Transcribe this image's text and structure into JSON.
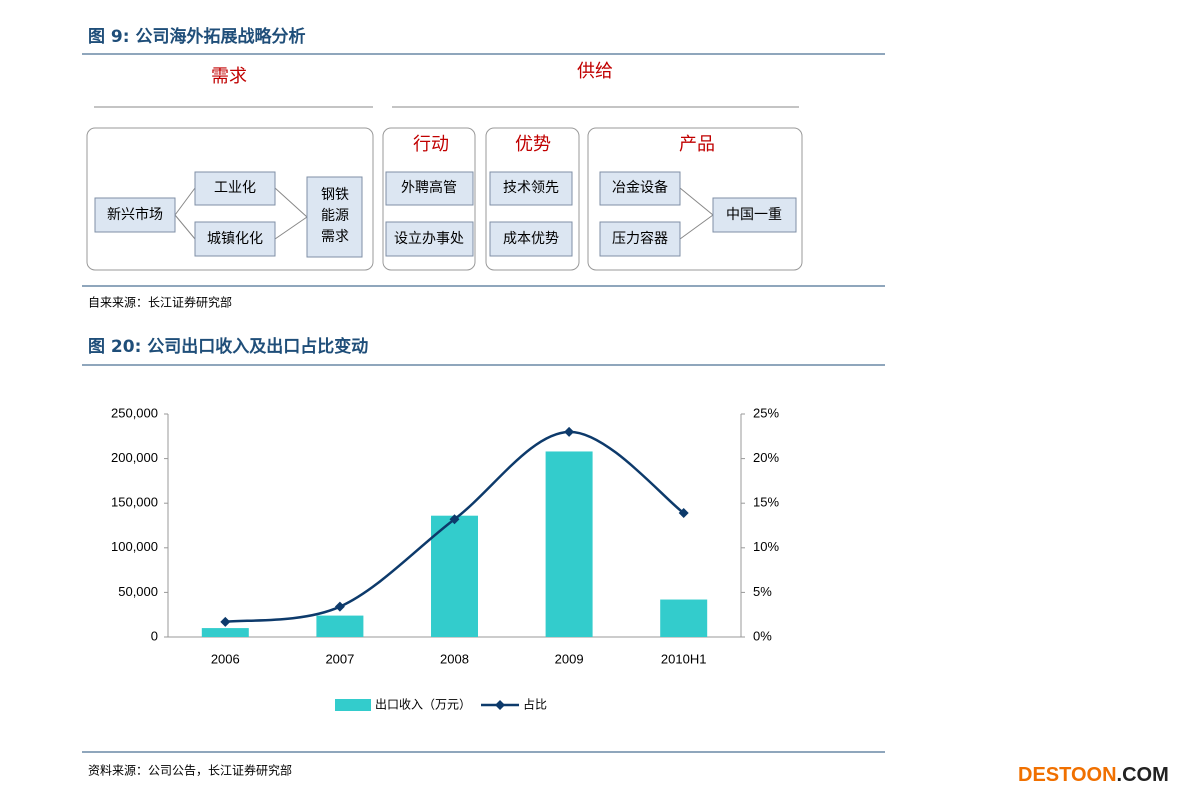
{
  "figure9": {
    "title": "图 9: 公司海外拓展战略分析",
    "source": "自来来源：长江证券研究部"
  },
  "diagram": {
    "demand": "需求",
    "supply": "供给",
    "demand_nodes": {
      "start": "新兴市场",
      "drivers": [
        "工业化",
        "城镇化化"
      ],
      "result": [
        "钢铁",
        "能源",
        "需求"
      ]
    },
    "action": {
      "header": "行动",
      "items": [
        "外聘高管",
        "设立办事处"
      ]
    },
    "advantage": {
      "header": "优势",
      "items": [
        "技术领先",
        "成本优势"
      ]
    },
    "product": {
      "header": "产品",
      "items": [
        "冶金设备",
        "压力容器"
      ],
      "result": "中国一重"
    }
  },
  "chart_data": {
    "type": "bar",
    "title": "图 20: 公司出口收入及出口占比变动",
    "source": "资料来源：公司公告，长江证券研究部",
    "categories": [
      "2006",
      "2007",
      "2008",
      "2009",
      "2010H1"
    ],
    "series": [
      {
        "name": "出口收入（万元）",
        "type": "bar",
        "color": "#33cccc",
        "values": [
          10000,
          24000,
          136000,
          208000,
          42000
        ]
      },
      {
        "name": "占比",
        "type": "line",
        "axis": "y2",
        "color": "#0d3a6b",
        "values": [
          1.7,
          3.4,
          13.2,
          23.0,
          13.9
        ]
      }
    ],
    "ylim": [
      0,
      250000
    ],
    "yticks": [
      0,
      {
        "value": 50000,
        "label": "50,000"
      },
      {
        "value": 100000,
        "label": "100,000"
      },
      {
        "value": 150000,
        "label": "150,000"
      },
      {
        "value": 200000,
        "label": "200,000"
      },
      {
        "value": 250000,
        "label": "250,000"
      }
    ],
    "y2lim": [
      0,
      25
    ],
    "y2ticks": [
      {
        "value": 0,
        "label": "0%"
      },
      {
        "value": 5,
        "label": "5%"
      },
      {
        "value": 10,
        "label": "10%"
      },
      {
        "value": 15,
        "label": "15%"
      },
      {
        "value": 20,
        "label": "20%"
      },
      {
        "value": 25,
        "label": "25%"
      }
    ],
    "grid": false,
    "legend": "bottom"
  },
  "watermark": [
    "DESTOON",
    ".COM"
  ]
}
